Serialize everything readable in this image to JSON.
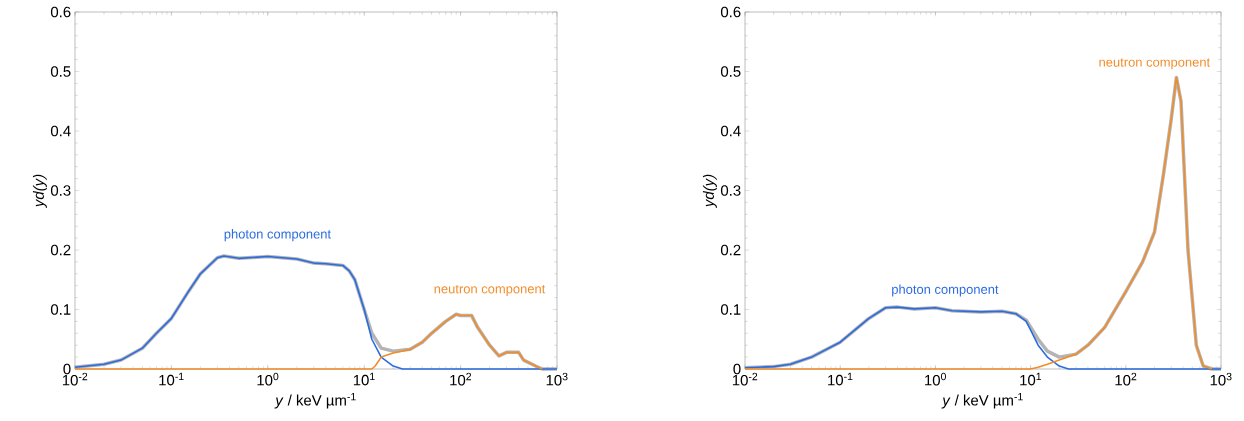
{
  "chart_data": [
    {
      "type": "line",
      "log": "x",
      "xlabel": "*y*  /  keV µm$^{-1}$",
      "ylabel": "yd(y)",
      "xlim": [
        0.01,
        1000
      ],
      "ylim": [
        0,
        0.6
      ],
      "xticks": [
        {
          "value": 0.01,
          "label": "10$^{-2}$"
        },
        {
          "value": 0.1,
          "label": "10$^{-1}$"
        },
        {
          "value": 1,
          "label": "10$^{0}$"
        },
        {
          "value": 10,
          "label": "10$^{1}$"
        },
        {
          "value": 100,
          "label": "10$^{2}$"
        },
        {
          "value": 1000,
          "label": "10$^{3}$"
        }
      ],
      "yticks": [
        0,
        0.1,
        0.2,
        0.3,
        0.4,
        0.5,
        0.6
      ],
      "series": [
        {
          "color": "#b4b4b4",
          "x": [
            0.01,
            0.02,
            0.03,
            0.05,
            0.07,
            0.1,
            0.15,
            0.2,
            0.3,
            0.35,
            0.5,
            1,
            2,
            3,
            4,
            6,
            7,
            8,
            10,
            12,
            15,
            20,
            30,
            40,
            50,
            70,
            90,
            100,
            130,
            150,
            200,
            250,
            300,
            400,
            450,
            600,
            700,
            1000
          ],
          "values": [
            0.003,
            0.008,
            0.015,
            0.035,
            0.06,
            0.085,
            0.13,
            0.16,
            0.187,
            0.19,
            0.186,
            0.189,
            0.185,
            0.178,
            0.177,
            0.174,
            0.165,
            0.15,
            0.1,
            0.06,
            0.035,
            0.03,
            0.033,
            0.045,
            0.06,
            0.08,
            0.092,
            0.09,
            0.09,
            0.07,
            0.04,
            0.022,
            0.028,
            0.028,
            0.015,
            0.005,
            0,
            0
          ]
        },
        {
          "color": "#2a6be0",
          "x": [
            0.01,
            0.02,
            0.03,
            0.05,
            0.07,
            0.1,
            0.15,
            0.2,
            0.3,
            0.35,
            0.5,
            1,
            2,
            3,
            4,
            6,
            7,
            8,
            10,
            12,
            15,
            20,
            25,
            1000
          ],
          "values": [
            0.003,
            0.008,
            0.015,
            0.035,
            0.06,
            0.085,
            0.13,
            0.16,
            0.187,
            0.19,
            0.186,
            0.189,
            0.185,
            0.178,
            0.177,
            0.174,
            0.165,
            0.15,
            0.1,
            0.05,
            0.02,
            0.005,
            0,
            0
          ]
        },
        {
          "color": "#f28c28",
          "x": [
            0.01,
            12,
            13,
            15,
            20,
            30,
            40,
            50,
            70,
            90,
            100,
            130,
            150,
            200,
            250,
            300,
            400,
            450,
            600,
            700
          ],
          "values": [
            0,
            0,
            0.005,
            0.02,
            0.027,
            0.033,
            0.045,
            0.06,
            0.08,
            0.092,
            0.09,
            0.09,
            0.07,
            0.04,
            0.022,
            0.028,
            0.028,
            0.015,
            0.005,
            0
          ]
        }
      ],
      "annotations": [
        "photon component",
        "neutron component"
      ]
    },
    {
      "type": "line",
      "log": "x",
      "xlabel": "*y*  /  keV µm$^{-1}$",
      "ylabel": "yd(y)",
      "xlim": [
        0.01,
        1000
      ],
      "ylim": [
        0,
        0.6
      ],
      "xticks": [
        {
          "value": 0.01,
          "label": "10$^{-2}$"
        },
        {
          "value": 0.1,
          "label": "10$^{-1}$"
        },
        {
          "value": 1,
          "label": "10$^{0}$"
        },
        {
          "value": 10,
          "label": "10$^{1}$"
        },
        {
          "value": 100,
          "label": "10$^{2}$"
        },
        {
          "value": 1000,
          "label": "10$^{3}$"
        }
      ],
      "yticks": [
        0,
        0.1,
        0.2,
        0.3,
        0.4,
        0.5,
        0.6
      ],
      "series": [
        {
          "color": "#b4b4b4",
          "x": [
            0.01,
            0.02,
            0.03,
            0.05,
            0.1,
            0.2,
            0.3,
            0.4,
            0.6,
            1,
            1.5,
            3,
            5,
            7,
            9,
            12,
            15,
            20,
            30,
            40,
            60,
            100,
            150,
            200,
            250,
            300,
            340,
            380,
            450,
            550,
            650,
            800,
            1000
          ],
          "values": [
            0.002,
            0.004,
            0.008,
            0.02,
            0.045,
            0.085,
            0.103,
            0.104,
            0.101,
            0.103,
            0.098,
            0.096,
            0.097,
            0.093,
            0.082,
            0.05,
            0.03,
            0.02,
            0.025,
            0.04,
            0.07,
            0.13,
            0.18,
            0.23,
            0.33,
            0.42,
            0.49,
            0.45,
            0.2,
            0.04,
            0.005,
            0,
            0
          ]
        },
        {
          "color": "#2a6be0",
          "x": [
            0.01,
            0.02,
            0.03,
            0.05,
            0.1,
            0.2,
            0.3,
            0.4,
            0.6,
            1,
            1.5,
            3,
            5,
            7,
            9,
            12,
            15,
            20,
            25,
            1000
          ],
          "values": [
            0.002,
            0.004,
            0.008,
            0.02,
            0.045,
            0.085,
            0.103,
            0.104,
            0.101,
            0.103,
            0.098,
            0.096,
            0.097,
            0.093,
            0.08,
            0.04,
            0.02,
            0.005,
            0,
            0
          ]
        },
        {
          "color": "#f28c28",
          "x": [
            0.01,
            10,
            12,
            15,
            20,
            30,
            40,
            60,
            100,
            150,
            200,
            250,
            300,
            340,
            380,
            450,
            550,
            650,
            800
          ],
          "values": [
            0,
            0,
            0.003,
            0.008,
            0.015,
            0.025,
            0.04,
            0.07,
            0.13,
            0.18,
            0.23,
            0.33,
            0.42,
            0.49,
            0.45,
            0.2,
            0.04,
            0.005,
            0
          ]
        }
      ],
      "annotations": [
        "photon component",
        "neutron component"
      ]
    }
  ]
}
